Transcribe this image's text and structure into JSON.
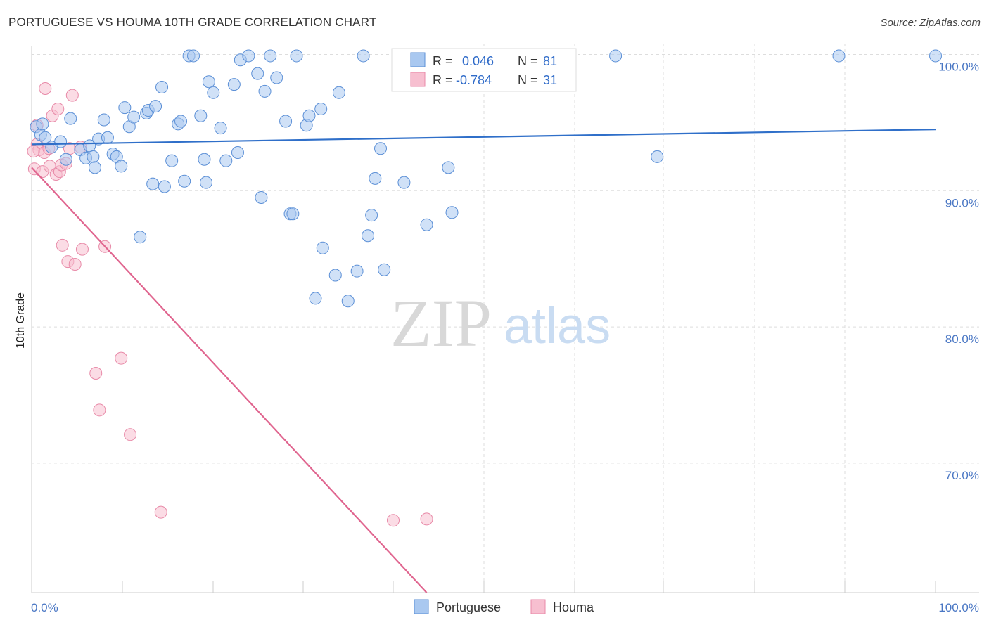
{
  "header": {
    "title": "PORTUGUESE VS HOUMA 10TH GRADE CORRELATION CHART",
    "source": "Source: ZipAtlas.com"
  },
  "watermark": {
    "zip": "ZIP",
    "atlas": "atlas"
  },
  "colors": {
    "portuguese_fill": "#a9c8f0",
    "portuguese_stroke": "#5b8fd6",
    "portuguese_line": "#2f6fc9",
    "houma_fill": "#f7bfd0",
    "houma_stroke": "#e88aa8",
    "houma_line": "#e0658f",
    "axis_text": "#4a77c4",
    "grid": "#dddddd"
  },
  "legend": {
    "rows": [
      {
        "r_label": "R =",
        "r_value": "0.046",
        "n_label": "N =",
        "n_value": "81"
      },
      {
        "r_label": "R =",
        "r_value": "-0.784",
        "n_label": "N =",
        "n_value": "31"
      }
    ]
  },
  "chart_data": {
    "type": "scatter",
    "ylabel": "10th Grade",
    "xlim": [
      0,
      100
    ],
    "ylim": [
      60.5,
      100.8
    ],
    "x_tick_labels": [
      "0.0%",
      "100.0%"
    ],
    "y_ticks": [
      70,
      80,
      90,
      100
    ],
    "y_tick_labels": [
      "70.0%",
      "80.0%",
      "90.0%",
      "100.0%"
    ],
    "grid": true,
    "legend_position": "bottom",
    "series": [
      {
        "name": "Portuguese",
        "color": "#5b8fd6",
        "trend": {
          "x": [
            0,
            100
          ],
          "y": [
            93.4,
            94.5
          ]
        },
        "points": [
          [
            0.5,
            94.7
          ],
          [
            1.0,
            94.1
          ],
          [
            1.2,
            94.9
          ],
          [
            1.5,
            93.9
          ],
          [
            2.2,
            93.2
          ],
          [
            3.2,
            93.6
          ],
          [
            3.8,
            92.3
          ],
          [
            4.3,
            95.3
          ],
          [
            5.4,
            93.0
          ],
          [
            6.0,
            92.4
          ],
          [
            6.4,
            93.3
          ],
          [
            6.8,
            92.5
          ],
          [
            7.0,
            91.7
          ],
          [
            7.4,
            93.8
          ],
          [
            8.0,
            95.2
          ],
          [
            8.4,
            93.9
          ],
          [
            9.0,
            92.7
          ],
          [
            9.4,
            92.5
          ],
          [
            9.9,
            91.8
          ],
          [
            10.3,
            96.1
          ],
          [
            10.8,
            94.7
          ],
          [
            11.3,
            95.4
          ],
          [
            12.0,
            86.6
          ],
          [
            12.7,
            95.7
          ],
          [
            12.9,
            95.9
          ],
          [
            13.7,
            96.2
          ],
          [
            13.4,
            90.5
          ],
          [
            14.4,
            97.6
          ],
          [
            14.7,
            90.3
          ],
          [
            15.5,
            92.2
          ],
          [
            16.2,
            94.9
          ],
          [
            16.5,
            95.1
          ],
          [
            16.9,
            90.7
          ],
          [
            17.4,
            99.9
          ],
          [
            17.9,
            99.9
          ],
          [
            18.7,
            95.5
          ],
          [
            19.1,
            92.3
          ],
          [
            19.3,
            90.6
          ],
          [
            19.6,
            98.0
          ],
          [
            20.1,
            97.2
          ],
          [
            20.9,
            94.6
          ],
          [
            21.5,
            92.2
          ],
          [
            22.4,
            97.8
          ],
          [
            22.8,
            92.8
          ],
          [
            23.1,
            99.6
          ],
          [
            24.0,
            99.9
          ],
          [
            25.0,
            98.6
          ],
          [
            25.4,
            89.5
          ],
          [
            25.8,
            97.3
          ],
          [
            26.4,
            99.9
          ],
          [
            27.1,
            98.3
          ],
          [
            28.1,
            95.1
          ],
          [
            28.6,
            88.3
          ],
          [
            28.9,
            88.3
          ],
          [
            29.3,
            99.9
          ],
          [
            30.4,
            94.8
          ],
          [
            30.7,
            95.5
          ],
          [
            31.4,
            82.1
          ],
          [
            32.0,
            96.0
          ],
          [
            32.2,
            85.8
          ],
          [
            33.6,
            83.8
          ],
          [
            34.0,
            97.2
          ],
          [
            35.0,
            81.9
          ],
          [
            36.0,
            84.1
          ],
          [
            36.7,
            99.9
          ],
          [
            37.2,
            86.7
          ],
          [
            37.6,
            88.2
          ],
          [
            38.0,
            90.9
          ],
          [
            38.6,
            93.1
          ],
          [
            39.0,
            84.2
          ],
          [
            41.2,
            90.6
          ],
          [
            43.7,
            87.5
          ],
          [
            45.0,
            99.9
          ],
          [
            46.1,
            91.7
          ],
          [
            46.5,
            88.4
          ],
          [
            51.0,
            99.9
          ],
          [
            51.1,
            99.9
          ],
          [
            64.6,
            99.9
          ],
          [
            69.2,
            92.5
          ],
          [
            89.3,
            99.9
          ],
          [
            100.0,
            99.9
          ]
        ]
      },
      {
        "name": "Houma",
        "color": "#e88aa8",
        "trend": {
          "x": [
            0,
            43.7
          ],
          "y": [
            91.7,
            60.5
          ]
        },
        "points": [
          [
            0.3,
            91.6
          ],
          [
            0.6,
            94.8
          ],
          [
            0.6,
            93.4
          ],
          [
            0.8,
            93.0
          ],
          [
            1.2,
            91.4
          ],
          [
            1.4,
            92.8
          ],
          [
            1.5,
            97.5
          ],
          [
            1.9,
            93.1
          ],
          [
            2.0,
            91.8
          ],
          [
            2.3,
            95.5
          ],
          [
            2.7,
            91.2
          ],
          [
            2.9,
            96.0
          ],
          [
            3.1,
            91.4
          ],
          [
            3.3,
            91.9
          ],
          [
            3.4,
            86.0
          ],
          [
            3.8,
            92.0
          ],
          [
            4.0,
            84.8
          ],
          [
            4.2,
            93.1
          ],
          [
            4.5,
            97.0
          ],
          [
            4.8,
            84.6
          ],
          [
            5.4,
            93.2
          ],
          [
            5.6,
            85.7
          ],
          [
            7.1,
            76.6
          ],
          [
            7.5,
            73.9
          ],
          [
            8.1,
            85.9
          ],
          [
            9.9,
            77.7
          ],
          [
            10.9,
            72.1
          ],
          [
            14.3,
            66.4
          ],
          [
            40.0,
            65.8
          ],
          [
            43.7,
            65.9
          ],
          [
            0.2,
            92.9
          ]
        ]
      }
    ]
  }
}
